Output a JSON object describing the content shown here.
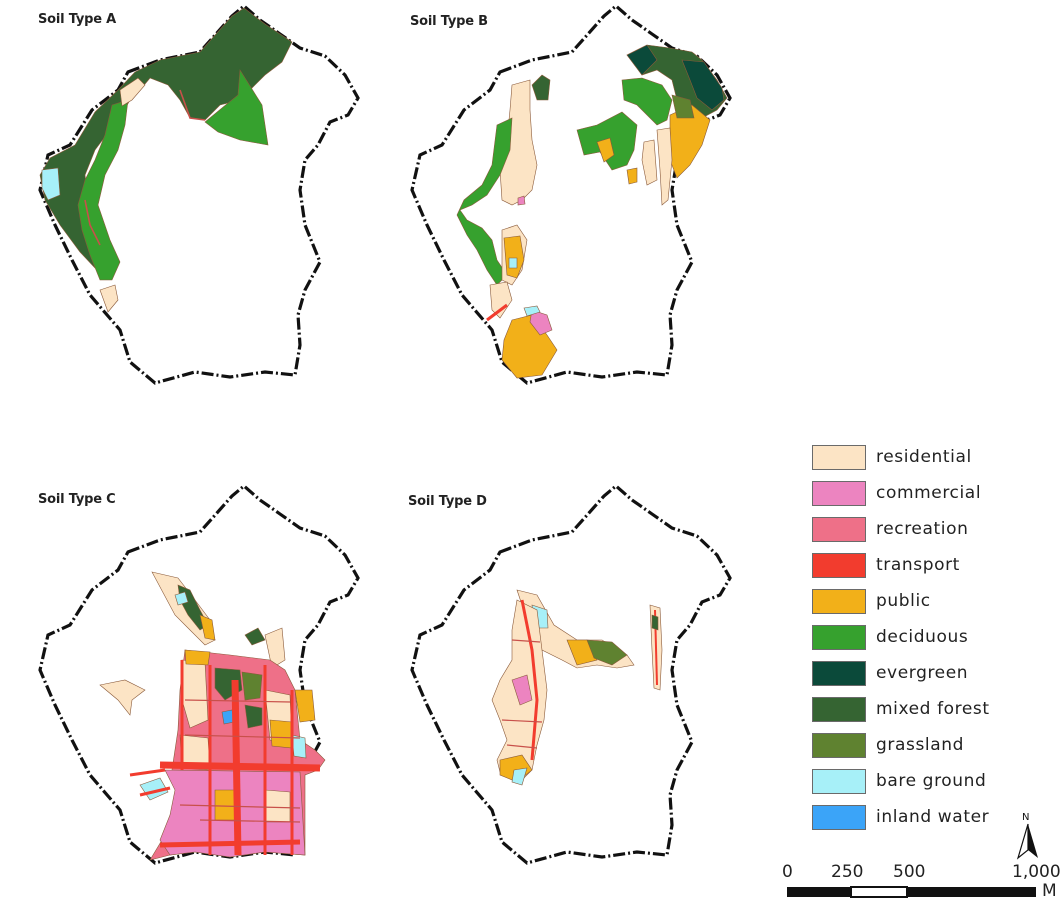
{
  "panels": [
    {
      "title": "Soil Type A"
    },
    {
      "title": "Soil Type B"
    },
    {
      "title": "Soil Type C"
    },
    {
      "title": "Soil Type D"
    }
  ],
  "legend": [
    {
      "label": "residential",
      "color": "#fce4c5"
    },
    {
      "label": "commercial",
      "color": "#ec84c0"
    },
    {
      "label": "recreation",
      "color": "#ee7088"
    },
    {
      "label": "transport",
      "color": "#f23c2e"
    },
    {
      "label": "public",
      "color": "#f2b019"
    },
    {
      "label": "deciduous",
      "color": "#36a12e"
    },
    {
      "label": "evergreen",
      "color": "#0b4a3a"
    },
    {
      "label": "mixed forest",
      "color": "#356432"
    },
    {
      "label": "grassland",
      "color": "#5f8230"
    },
    {
      "label": "bare ground",
      "color": "#a7f0f8"
    },
    {
      "label": "inland water",
      "color": "#3ba4f8"
    }
  ],
  "scale_bar": {
    "ticks": [
      "0",
      "250",
      "500",
      "1,000"
    ],
    "unit": "M"
  },
  "north_arrow": {
    "label": "N"
  }
}
